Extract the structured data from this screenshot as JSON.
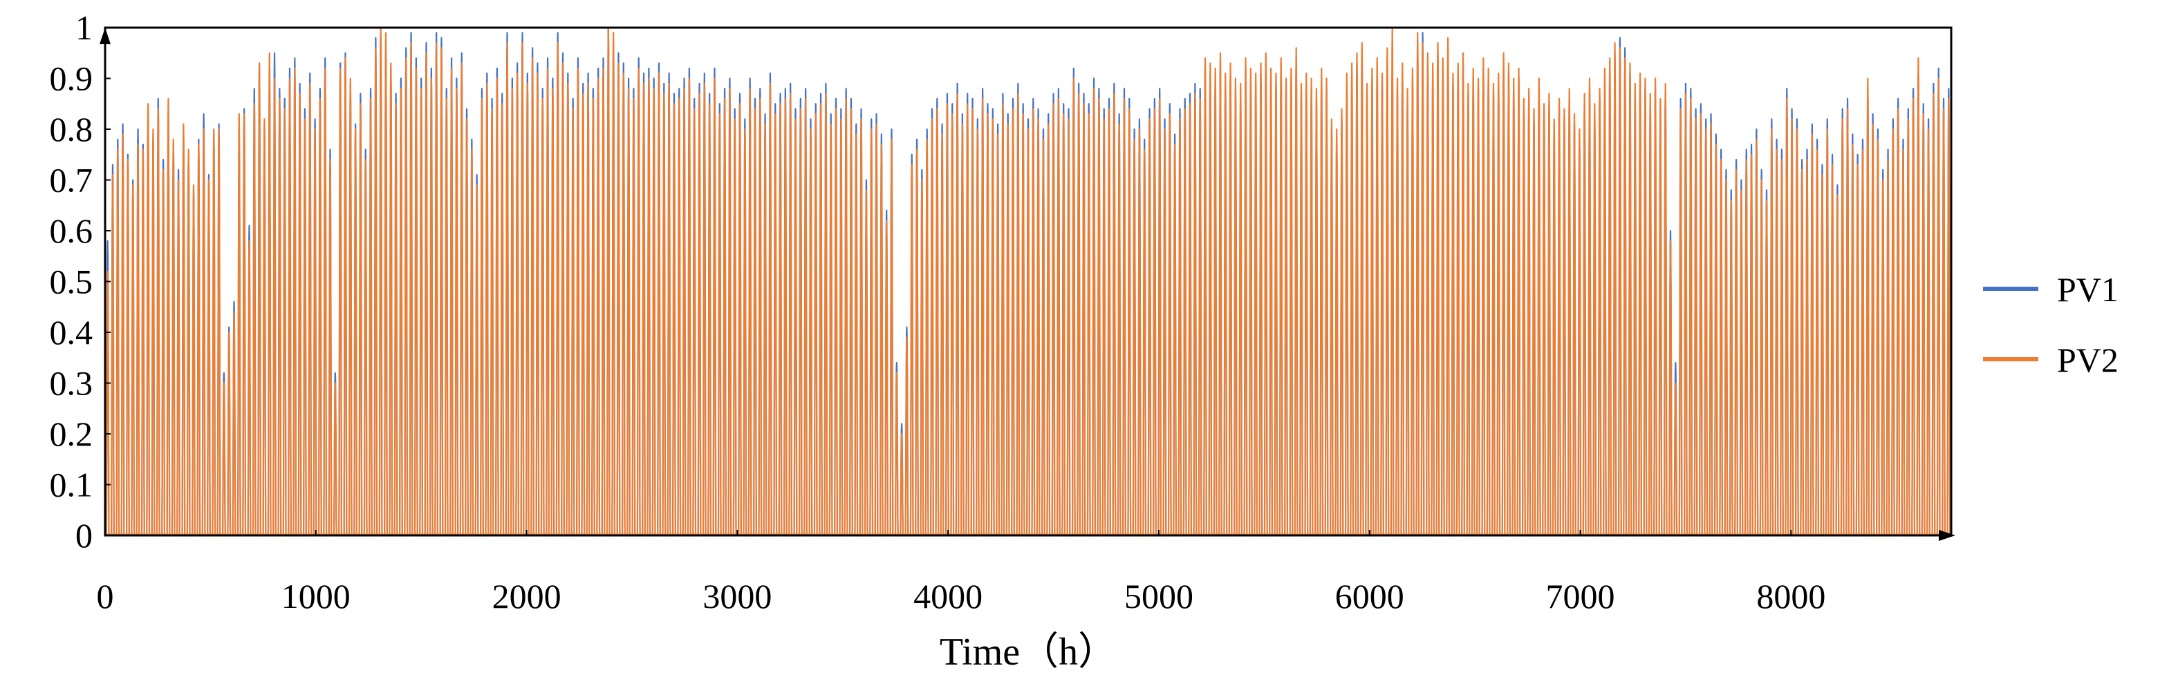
{
  "chart_data": {
    "type": "line",
    "title": "",
    "xlabel": "Time（h）",
    "ylabel": "",
    "xlim": [
      0,
      8760
    ],
    "ylim": [
      0,
      1
    ],
    "x_ticks": [
      "0",
      "1000",
      "2000",
      "3000",
      "4000",
      "5000",
      "6000",
      "7000",
      "8000"
    ],
    "y_ticks": [
      "0",
      "0.1",
      "0.2",
      "0.3",
      "0.4",
      "0.5",
      "0.6",
      "0.7",
      "0.8",
      "0.9",
      "1"
    ],
    "grid": false,
    "legend_position": "right",
    "sampling": "daily peak output (hourly series, 365 days)",
    "series": [
      {
        "name": "PV1",
        "color": "#4472C4",
        "daily_peak": [
          0.58,
          0.73,
          0.78,
          0.81,
          0.75,
          0.7,
          0.8,
          0.77,
          0.82,
          0.79,
          0.86,
          0.74,
          0.82,
          0.77,
          0.72,
          0.8,
          0.75,
          0.68,
          0.78,
          0.83,
          0.71,
          0.79,
          0.81,
          0.32,
          0.41,
          0.46,
          0.79,
          0.84,
          0.61,
          0.88,
          0.93,
          0.81,
          0.9,
          0.95,
          0.88,
          0.86,
          0.92,
          0.94,
          0.89,
          0.84,
          0.91,
          0.82,
          0.88,
          0.94,
          0.76,
          0.32,
          0.93,
          0.95,
          0.89,
          0.81,
          0.87,
          0.76,
          0.88,
          0.98,
          0.99,
          0.95,
          0.92,
          0.87,
          0.9,
          0.96,
          0.99,
          0.94,
          0.9,
          0.97,
          0.92,
          0.99,
          0.98,
          0.88,
          0.94,
          0.9,
          0.95,
          0.84,
          0.78,
          0.71,
          0.88,
          0.91,
          0.86,
          0.92,
          0.87,
          0.99,
          0.9,
          0.93,
          0.99,
          0.91,
          0.96,
          0.93,
          0.88,
          0.94,
          0.9,
          0.99,
          0.95,
          0.91,
          0.86,
          0.94,
          0.89,
          0.91,
          0.88,
          0.92,
          0.94,
          1.0,
          0.97,
          0.95,
          0.93,
          0.9,
          0.88,
          0.94,
          0.91,
          0.92,
          0.9,
          0.93,
          0.89,
          0.91,
          0.87,
          0.88,
          0.9,
          0.92,
          0.86,
          0.89,
          0.91,
          0.87,
          0.92,
          0.85,
          0.88,
          0.9,
          0.84,
          0.87,
          0.82,
          0.9,
          0.86,
          0.88,
          0.83,
          0.91,
          0.85,
          0.87,
          0.88,
          0.89,
          0.84,
          0.86,
          0.88,
          0.82,
          0.85,
          0.87,
          0.89,
          0.83,
          0.86,
          0.84,
          0.88,
          0.86,
          0.81,
          0.84,
          0.7,
          0.82,
          0.83,
          0.79,
          0.64,
          0.8,
          0.34,
          0.22,
          0.41,
          0.75,
          0.78,
          0.72,
          0.8,
          0.84,
          0.86,
          0.81,
          0.87,
          0.85,
          0.89,
          0.83,
          0.87,
          0.86,
          0.82,
          0.88,
          0.85,
          0.84,
          0.81,
          0.87,
          0.83,
          0.86,
          0.89,
          0.85,
          0.82,
          0.86,
          0.84,
          0.8,
          0.83,
          0.87,
          0.88,
          0.85,
          0.84,
          0.92,
          0.89,
          0.87,
          0.85,
          0.9,
          0.88,
          0.84,
          0.86,
          0.89,
          0.83,
          0.88,
          0.86,
          0.8,
          0.82,
          0.78,
          0.84,
          0.86,
          0.88,
          0.82,
          0.85,
          0.79,
          0.84,
          0.86,
          0.87,
          0.89,
          0.88,
          0.92,
          0.91,
          0.9,
          0.93,
          0.89,
          0.91,
          0.88,
          0.87,
          0.92,
          0.9,
          0.89,
          0.91,
          0.93,
          0.9,
          0.89,
          0.92,
          0.88,
          0.9,
          0.94,
          0.87,
          0.89,
          0.88,
          0.86,
          0.9,
          0.88,
          0.8,
          0.78,
          0.82,
          0.89,
          0.91,
          0.93,
          0.95,
          0.87,
          0.9,
          0.92,
          0.89,
          0.94,
          0.93,
          0.88,
          0.91,
          0.86,
          0.9,
          0.97,
          0.99,
          0.93,
          0.91,
          0.95,
          0.92,
          0.96,
          0.89,
          0.91,
          0.93,
          0.87,
          0.9,
          0.88,
          0.92,
          0.9,
          0.87,
          0.89,
          0.93,
          0.91,
          0.88,
          0.9,
          0.84,
          0.86,
          0.82,
          0.88,
          0.83,
          0.85,
          0.8,
          0.84,
          0.82,
          0.86,
          0.81,
          0.78,
          0.85,
          0.88,
          0.83,
          0.86,
          0.9,
          0.92,
          0.95,
          0.98,
          0.96,
          0.91,
          0.87,
          0.89,
          0.88,
          0.85,
          0.88,
          0.84,
          0.87,
          0.6,
          0.34,
          0.86,
          0.89,
          0.88,
          0.84,
          0.85,
          0.82,
          0.83,
          0.79,
          0.76,
          0.72,
          0.68,
          0.74,
          0.7,
          0.76,
          0.77,
          0.8,
          0.72,
          0.68,
          0.82,
          0.78,
          0.76,
          0.88,
          0.84,
          0.82,
          0.74,
          0.76,
          0.81,
          0.78,
          0.73,
          0.82,
          0.75,
          0.69,
          0.84,
          0.86,
          0.79,
          0.75,
          0.78,
          0.88,
          0.83,
          0.8,
          0.72,
          0.76,
          0.82,
          0.86,
          0.78,
          0.84,
          0.88,
          0.91,
          0.85,
          0.82,
          0.89,
          0.92,
          0.86,
          0.88,
          0.87,
          0.9
        ]
      },
      {
        "name": "PV2",
        "color": "#ED7D31",
        "daily_peak": [
          0.52,
          0.71,
          0.76,
          0.79,
          0.74,
          0.69,
          0.77,
          0.76,
          0.85,
          0.8,
          0.84,
          0.72,
          0.86,
          0.78,
          0.7,
          0.81,
          0.76,
          0.69,
          0.77,
          0.8,
          0.7,
          0.8,
          0.8,
          0.3,
          0.4,
          0.44,
          0.83,
          0.83,
          0.58,
          0.85,
          0.93,
          0.82,
          0.95,
          0.9,
          0.86,
          0.84,
          0.9,
          0.92,
          0.87,
          0.82,
          0.89,
          0.8,
          0.86,
          0.92,
          0.74,
          0.3,
          0.92,
          0.94,
          0.9,
          0.8,
          0.85,
          0.74,
          0.86,
          0.96,
          1.0,
          0.99,
          0.93,
          0.85,
          0.88,
          0.94,
          0.97,
          0.92,
          0.88,
          0.95,
          0.9,
          0.97,
          0.96,
          0.86,
          0.92,
          0.88,
          0.93,
          0.82,
          0.76,
          0.69,
          0.86,
          0.89,
          0.84,
          0.9,
          0.85,
          0.97,
          0.88,
          0.91,
          0.97,
          0.89,
          0.94,
          0.91,
          0.86,
          0.92,
          0.88,
          0.97,
          0.93,
          0.89,
          0.84,
          0.92,
          0.87,
          0.89,
          0.86,
          0.9,
          0.92,
          1.0,
          0.99,
          0.93,
          0.91,
          0.88,
          0.86,
          0.92,
          0.89,
          0.9,
          0.88,
          0.91,
          0.87,
          0.89,
          0.85,
          0.86,
          0.88,
          0.9,
          0.84,
          0.87,
          0.89,
          0.85,
          0.9,
          0.83,
          0.86,
          0.88,
          0.82,
          0.85,
          0.8,
          0.88,
          0.84,
          0.86,
          0.81,
          0.89,
          0.83,
          0.85,
          0.86,
          0.87,
          0.82,
          0.84,
          0.86,
          0.8,
          0.83,
          0.85,
          0.87,
          0.81,
          0.84,
          0.82,
          0.86,
          0.84,
          0.79,
          0.82,
          0.68,
          0.8,
          0.81,
          0.77,
          0.62,
          0.78,
          0.32,
          0.2,
          0.39,
          0.73,
          0.76,
          0.7,
          0.78,
          0.82,
          0.84,
          0.79,
          0.85,
          0.83,
          0.87,
          0.81,
          0.85,
          0.84,
          0.8,
          0.86,
          0.83,
          0.82,
          0.79,
          0.85,
          0.81,
          0.84,
          0.87,
          0.83,
          0.8,
          0.84,
          0.82,
          0.78,
          0.81,
          0.85,
          0.86,
          0.83,
          0.82,
          0.9,
          0.87,
          0.85,
          0.83,
          0.88,
          0.86,
          0.82,
          0.84,
          0.87,
          0.81,
          0.86,
          0.84,
          0.78,
          0.8,
          0.76,
          0.82,
          0.84,
          0.86,
          0.8,
          0.83,
          0.77,
          0.82,
          0.84,
          0.85,
          0.87,
          0.86,
          0.94,
          0.93,
          0.92,
          0.95,
          0.91,
          0.93,
          0.9,
          0.89,
          0.94,
          0.92,
          0.91,
          0.93,
          0.95,
          0.92,
          0.91,
          0.94,
          0.9,
          0.92,
          0.96,
          0.89,
          0.91,
          0.9,
          0.88,
          0.92,
          0.9,
          0.82,
          0.8,
          0.84,
          0.91,
          0.93,
          0.95,
          0.97,
          0.89,
          0.92,
          0.94,
          0.91,
          0.96,
          1.0,
          0.9,
          0.93,
          0.88,
          0.92,
          0.99,
          0.97,
          0.95,
          0.93,
          0.97,
          0.94,
          0.98,
          0.91,
          0.93,
          0.95,
          0.89,
          0.92,
          0.9,
          0.94,
          0.92,
          0.89,
          0.91,
          0.95,
          0.93,
          0.9,
          0.92,
          0.86,
          0.88,
          0.84,
          0.9,
          0.85,
          0.87,
          0.82,
          0.86,
          0.84,
          0.88,
          0.83,
          0.8,
          0.87,
          0.9,
          0.85,
          0.88,
          0.92,
          0.94,
          0.97,
          0.96,
          0.94,
          0.93,
          0.89,
          0.91,
          0.9,
          0.87,
          0.9,
          0.86,
          0.89,
          0.58,
          0.3,
          0.84,
          0.87,
          0.86,
          0.82,
          0.83,
          0.8,
          0.81,
          0.77,
          0.74,
          0.7,
          0.66,
          0.72,
          0.68,
          0.74,
          0.75,
          0.78,
          0.7,
          0.66,
          0.8,
          0.76,
          0.74,
          0.86,
          0.82,
          0.8,
          0.72,
          0.74,
          0.79,
          0.76,
          0.71,
          0.8,
          0.73,
          0.67,
          0.82,
          0.84,
          0.77,
          0.73,
          0.76,
          0.9,
          0.81,
          0.78,
          0.7,
          0.74,
          0.8,
          0.84,
          0.76,
          0.82,
          0.86,
          0.94,
          0.83,
          0.8,
          0.87,
          0.9,
          0.84,
          0.86,
          0.85,
          0.89
        ]
      }
    ]
  }
}
